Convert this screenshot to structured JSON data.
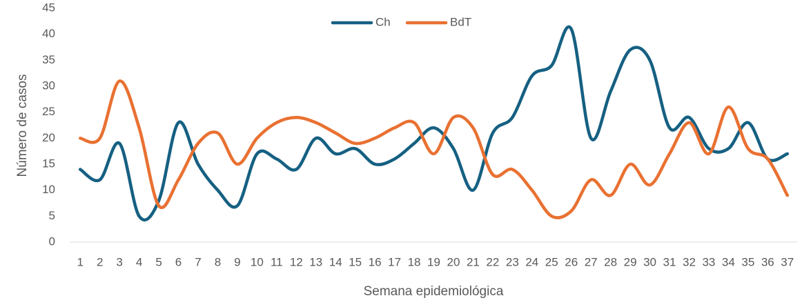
{
  "chart_data": {
    "type": "line",
    "x_label": "Semana epidemiológica",
    "y_label": "Número de casos",
    "categories": [
      "1",
      "2",
      "3",
      "4",
      "5",
      "6",
      "7",
      "8",
      "9",
      "10",
      "11",
      "12",
      "13",
      "14",
      "15",
      "16",
      "17",
      "18",
      "19",
      "20",
      "21",
      "22",
      "23",
      "24",
      "25",
      "26",
      "27",
      "28",
      "29",
      "30",
      "31",
      "32",
      "33",
      "34",
      "35",
      "36",
      "37"
    ],
    "series": [
      {
        "name": "Ch",
        "color": "#156082",
        "values": [
          14,
          12,
          19,
          5,
          8,
          23,
          15,
          10,
          7,
          17,
          16,
          14,
          20,
          17,
          18,
          15,
          16,
          19,
          22,
          18,
          10,
          21,
          24,
          32,
          34,
          41,
          20,
          29,
          37,
          35,
          22,
          24,
          18,
          18,
          23,
          16,
          17
        ]
      },
      {
        "name": "BdT",
        "color": "#e97132",
        "values": [
          20,
          20,
          31,
          22,
          7,
          12,
          19,
          21,
          15,
          20,
          23,
          24,
          23,
          21,
          19,
          20,
          22,
          23,
          17,
          24,
          22,
          13,
          14,
          10,
          5,
          6,
          12,
          9,
          15,
          11,
          17,
          23,
          17,
          26,
          18,
          16,
          9
        ]
      }
    ],
    "ylim": [
      0,
      45
    ],
    "yticks": [
      0,
      5,
      10,
      15,
      20,
      25,
      30,
      35,
      40,
      45
    ],
    "smooth": true,
    "grid": false,
    "legend": "top"
  }
}
